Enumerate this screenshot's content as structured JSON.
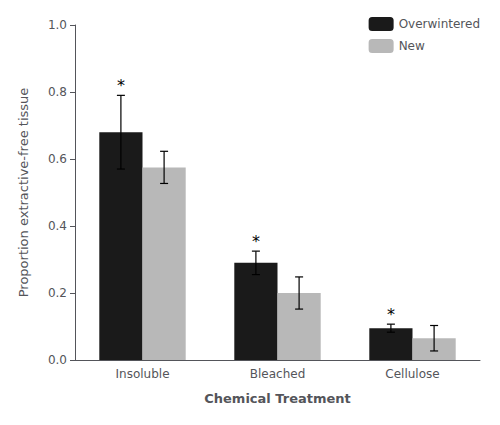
{
  "chart_data": {
    "type": "bar",
    "categories": [
      "Insoluble",
      "Bleached",
      "Cellulose"
    ],
    "series": [
      {
        "name": "Overwintered",
        "color": "#1a1a1a",
        "values": [
          0.68,
          0.29,
          0.095
        ],
        "errors": [
          0.11,
          0.035,
          0.012
        ]
      },
      {
        "name": "New",
        "color": "#b8b8b8",
        "values": [
          0.575,
          0.2,
          0.065
        ],
        "errors": [
          0.048,
          0.048,
          0.038
        ]
      }
    ],
    "ylim": [
      0.0,
      1.0
    ],
    "yticks": [
      {
        "value": 0.0,
        "label": "0.0"
      },
      0.2,
      0.4,
      0.6,
      0.8,
      {
        "value": 1.0,
        "label": "1.0"
      }
    ],
    "ylabel": "Proportion extractive-free tissue",
    "xlabel": "Chemical Treatment",
    "legend": "upper right",
    "grid": false,
    "annotations": [
      {
        "text": "*",
        "category": "Insoluble",
        "series": "Overwintered"
      },
      {
        "text": "*",
        "category": "Bleached",
        "series": "Overwintered"
      },
      {
        "text": "*",
        "category": "Cellulose",
        "series": "Overwintered"
      }
    ]
  }
}
